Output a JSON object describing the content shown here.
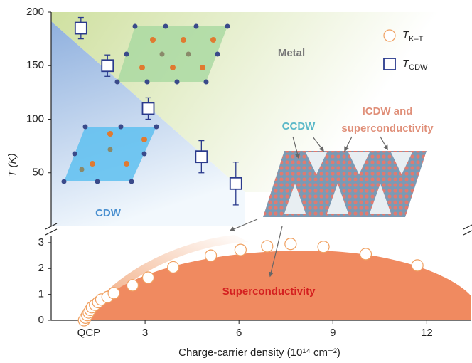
{
  "chart_data": {
    "type": "scatter",
    "xlabel": "Charge-carrier density (10¹⁴ cm⁻²)",
    "ylabel": "T (K)",
    "xlim": [
      0,
      13.4
    ],
    "xticks": [
      {
        "value": 1.2,
        "label": "QCP"
      },
      3,
      6,
      9,
      12
    ],
    "ylim": [
      0,
      200
    ],
    "yticks": [
      50,
      100,
      150,
      200
    ],
    "y2lim": [
      0,
      3.3
    ],
    "y2ticks": [
      0,
      1,
      2,
      3
    ],
    "legend": "upper right",
    "series": [
      {
        "name": "T",
        "subscript": "K–T",
        "color": "#f0a060",
        "marker": "circle",
        "axis": "y2",
        "x": [
          1.05,
          1.1,
          1.15,
          1.2,
          1.25,
          1.3,
          1.4,
          1.5,
          1.6,
          1.8,
          2.0,
          2.6,
          3.1,
          3.9,
          5.1,
          6.05,
          6.9,
          7.65,
          8.7,
          10.05,
          11.7
        ],
        "values": [
          0.0,
          0.1,
          0.2,
          0.3,
          0.4,
          0.5,
          0.6,
          0.7,
          0.8,
          0.9,
          1.05,
          1.35,
          1.65,
          2.05,
          2.5,
          2.72,
          2.86,
          2.95,
          2.84,
          2.56,
          2.12
        ]
      },
      {
        "name": "T",
        "subscript": "CDW",
        "color": "#2a3a8c",
        "marker": "square",
        "axis": "y",
        "x": [
          0.95,
          1.8,
          3.1,
          4.8,
          5.9
        ],
        "values": [
          185,
          150,
          110,
          65,
          40
        ],
        "errors": [
          10,
          10,
          10,
          15,
          20
        ]
      }
    ],
    "annotations": [
      {
        "text": "Metal",
        "color": "#777777"
      },
      {
        "text": "CDW",
        "color": "#4a90d0"
      },
      {
        "text": "CCDW",
        "color": "#5ab8c8"
      },
      {
        "text": "ICDW and",
        "color": "#e0907a"
      },
      {
        "text": "superconductivity",
        "color": "#e0907a"
      },
      {
        "text": "Superconductivity",
        "color": "#d42020"
      }
    ]
  }
}
